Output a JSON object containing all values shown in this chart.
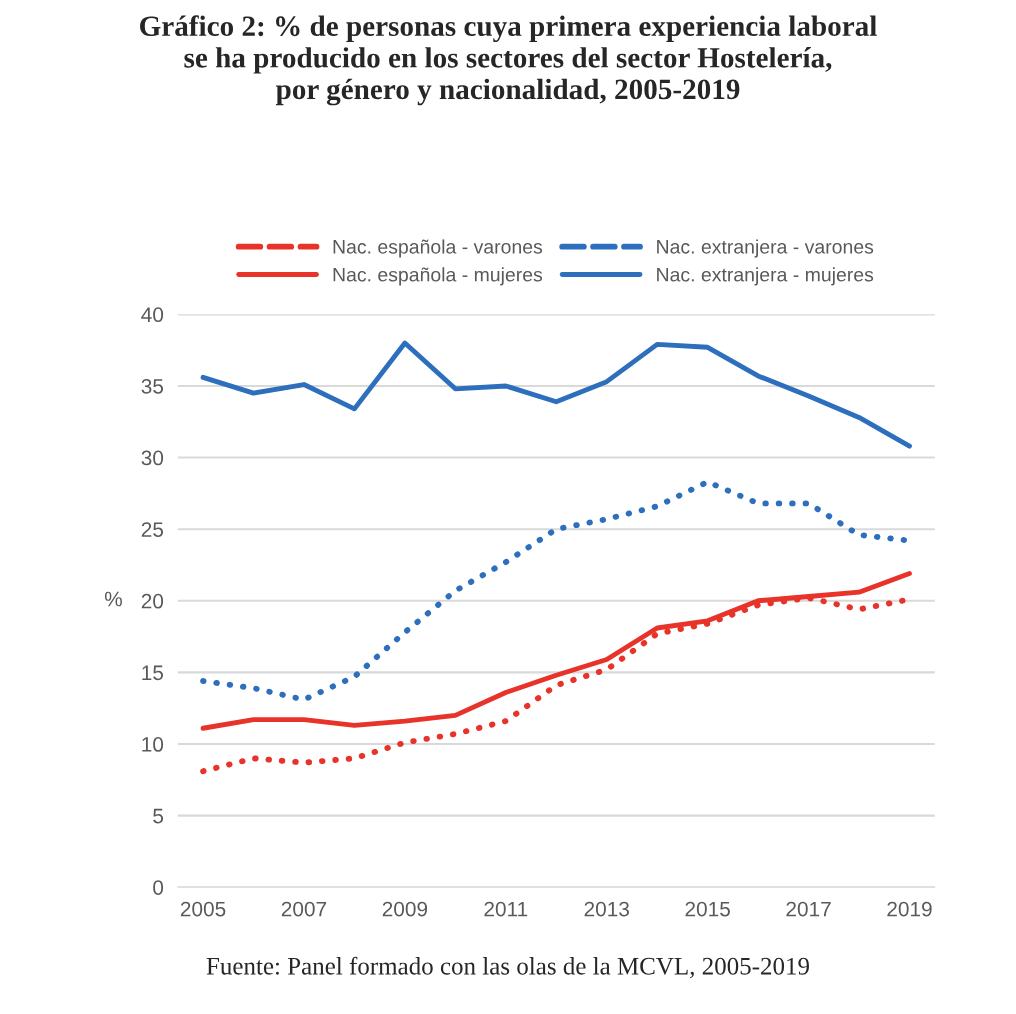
{
  "chart_data": {
    "type": "line",
    "title": "Gráfico 2: % de personas cuya primera experiencia laboral\nse ha producido en los sectores del sector Hostelería,\npor género y nacionalidad, 2005-2019",
    "ylabel": "%",
    "x": [
      2005,
      2006,
      2007,
      2008,
      2009,
      2010,
      2011,
      2012,
      2013,
      2014,
      2015,
      2016,
      2017,
      2018,
      2019
    ],
    "series": [
      {
        "name": "Nac. española - varones",
        "color": "#e8332a",
        "line_style": "dotted",
        "values": [
          8.1,
          9.0,
          8.7,
          9.0,
          10.1,
          10.7,
          11.6,
          14.1,
          15.2,
          17.7,
          18.4,
          19.7,
          20.2,
          19.4,
          20.1
        ]
      },
      {
        "name": "Nac. española - mujeres",
        "color": "#e8332a",
        "line_style": "solid",
        "values": [
          11.1,
          11.7,
          11.7,
          11.3,
          11.6,
          12.0,
          13.6,
          14.8,
          15.9,
          18.1,
          18.6,
          20.0,
          20.3,
          20.6,
          21.9
        ]
      },
      {
        "name": "Nac. extranjera - varones",
        "color": "#2e6fbd",
        "line_style": "dotted",
        "values": [
          14.4,
          13.9,
          13.1,
          14.7,
          17.8,
          20.7,
          22.7,
          25.0,
          25.7,
          26.6,
          28.3,
          26.8,
          26.8,
          24.6,
          24.2
        ]
      },
      {
        "name": "Nac. extranjera - mujeres",
        "color": "#2e6fbd",
        "line_style": "solid",
        "values": [
          35.6,
          34.5,
          35.1,
          33.4,
          38.0,
          34.8,
          35.0,
          33.9,
          35.3,
          37.9,
          37.7,
          35.7,
          34.3,
          32.8,
          30.8
        ]
      }
    ],
    "xlim": [
      2004.5,
      2019.5
    ],
    "xticks": [
      2005,
      2007,
      2009,
      2011,
      2013,
      2015,
      2017,
      2019
    ],
    "ylim": [
      0,
      40
    ],
    "yticks": [
      0,
      5,
      10,
      15,
      20,
      25,
      30,
      35,
      40
    ],
    "grid": "y",
    "legend": "top",
    "marker": "none",
    "annotations": [
      "Fuente: Panel formado con las olas de la MCVL, 2005-2019"
    ]
  }
}
